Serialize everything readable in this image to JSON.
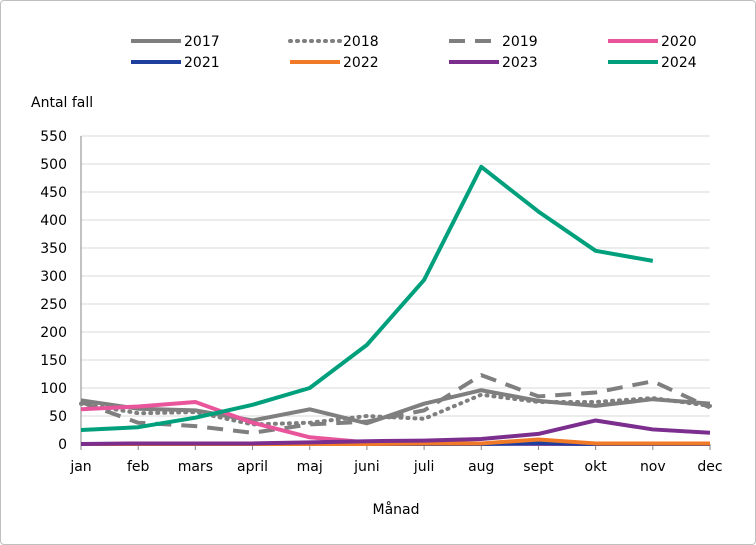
{
  "chart_data": {
    "type": "line",
    "ylabel": "Antal fall",
    "xlabel": "Månad",
    "categories": [
      "jan",
      "feb",
      "mars",
      "april",
      "maj",
      "juni",
      "juli",
      "aug",
      "sept",
      "okt",
      "nov",
      "dec"
    ],
    "ylim": [
      0,
      550
    ],
    "yticks": [
      "0",
      "50",
      "100",
      "150",
      "200",
      "250",
      "300",
      "350",
      "400",
      "450",
      "500",
      "550"
    ],
    "grid": true,
    "legend": "top",
    "series": [
      {
        "name": "2017",
        "color": "#7f7f7f",
        "dash": "solid",
        "values": [
          78,
          63,
          60,
          42,
          62,
          37,
          72,
          96,
          77,
          68,
          80,
          72
        ]
      },
      {
        "name": "2018",
        "color": "#7f7f7f",
        "dash": "dot",
        "values": [
          72,
          55,
          57,
          35,
          38,
          50,
          45,
          88,
          75,
          75,
          82,
          68
        ]
      },
      {
        "name": "2019",
        "color": "#7f7f7f",
        "dash": "dash",
        "values": [
          75,
          38,
          32,
          20,
          35,
          40,
          60,
          123,
          85,
          92,
          112,
          65
        ]
      },
      {
        "name": "2020",
        "color": "#e8559b",
        "dash": "solid",
        "values": [
          62,
          67,
          75,
          38,
          12,
          3,
          2,
          1,
          0,
          0,
          0,
          0
        ]
      },
      {
        "name": "2021",
        "color": "#1f3f9f",
        "dash": "solid",
        "values": [
          0,
          0,
          0,
          0,
          0,
          0,
          0,
          0,
          1,
          0,
          0,
          0
        ]
      },
      {
        "name": "2022",
        "color": "#f07a28",
        "dash": "solid",
        "values": [
          0,
          0,
          0,
          0,
          0,
          0,
          1,
          1,
          8,
          1,
          1,
          1
        ]
      },
      {
        "name": "2023",
        "color": "#7b2e8e",
        "dash": "solid",
        "values": [
          0,
          1,
          1,
          1,
          3,
          5,
          6,
          9,
          18,
          42,
          26,
          20
        ]
      },
      {
        "name": "2024",
        "color": "#00a07c",
        "dash": "solid",
        "values": [
          25,
          30,
          47,
          70,
          100,
          177,
          293,
          495,
          415,
          345,
          327,
          null
        ]
      }
    ]
  }
}
